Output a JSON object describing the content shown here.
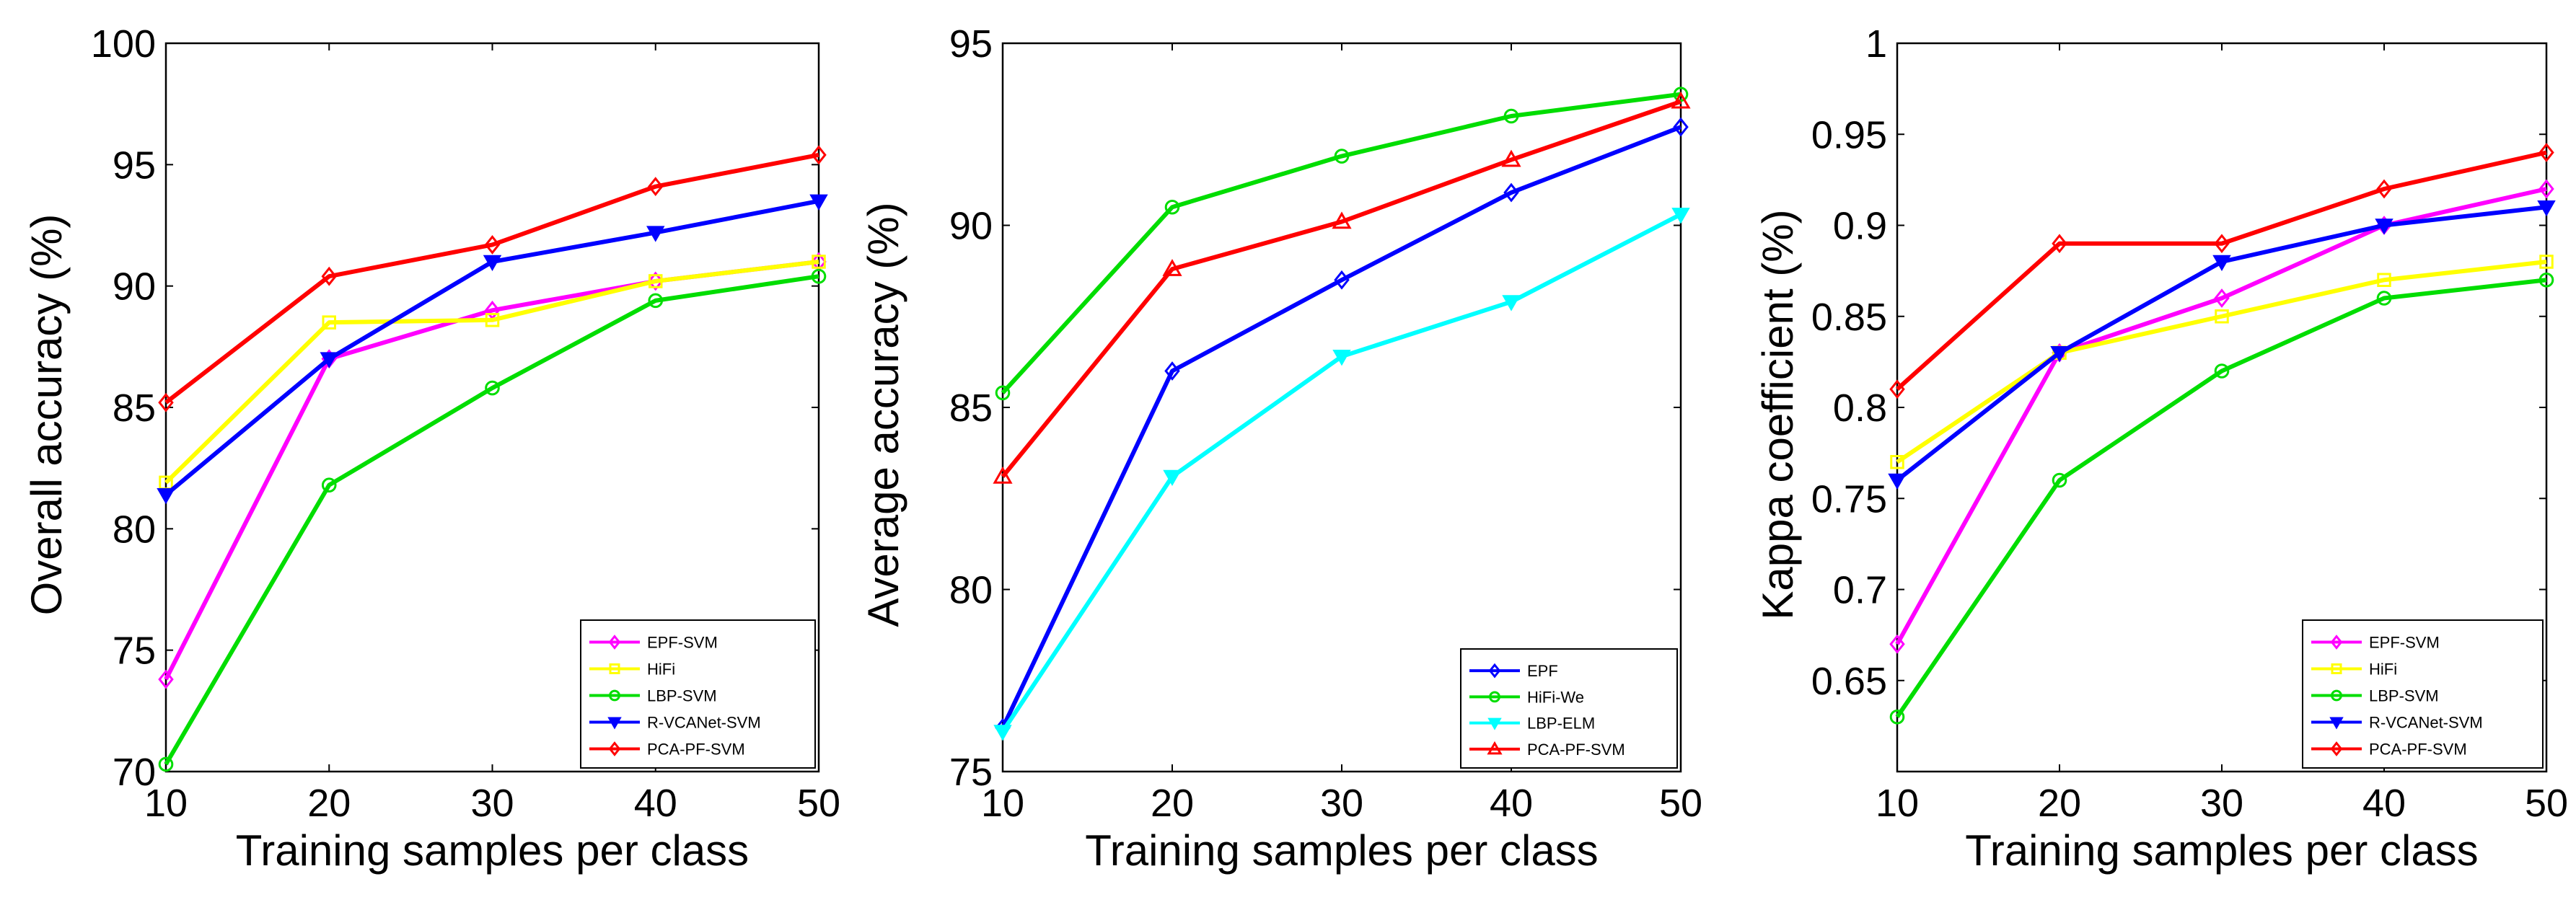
{
  "chart_data": [
    {
      "type": "line",
      "xlabel": "Training samples per class",
      "ylabel": "Overall accuracy (%)",
      "x": [
        10,
        20,
        30,
        40,
        50
      ],
      "xticks": [
        "10",
        "20",
        "30",
        "40",
        "50"
      ],
      "xlim": [
        10,
        50
      ],
      "ylim": [
        70,
        100
      ],
      "yticks": [
        "70",
        "75",
        "80",
        "85",
        "90",
        "95",
        "100"
      ],
      "ytick_values": [
        70,
        75,
        80,
        85,
        90,
        95,
        100
      ],
      "grid": false,
      "legend_position": "bottom-right",
      "series": [
        {
          "name": "EPF-SVM",
          "color": "#ff00ff",
          "marker": "diamond",
          "values": [
            73.8,
            87.0,
            89.0,
            90.2,
            91.0
          ]
        },
        {
          "name": "HiFi",
          "color": "#ffff00",
          "marker": "square",
          "values": [
            81.9,
            88.5,
            88.6,
            90.2,
            91.0
          ]
        },
        {
          "name": "LBP-SVM",
          "color": "#00dd00",
          "marker": "circle",
          "values": [
            70.3,
            81.8,
            85.8,
            89.4,
            90.4
          ]
        },
        {
          "name": "R-VCANet-SVM",
          "color": "#0000ff",
          "marker": "triangle-down",
          "values": [
            81.4,
            87.0,
            91.0,
            92.2,
            93.5
          ]
        },
        {
          "name": "PCA-PF-SVM",
          "color": "#ff0000",
          "marker": "diamond",
          "values": [
            85.2,
            90.4,
            91.7,
            94.1,
            95.4
          ]
        }
      ]
    },
    {
      "type": "line",
      "xlabel": "Training samples per class",
      "ylabel": "Average accuracy (%)",
      "x": [
        10,
        20,
        30,
        40,
        50
      ],
      "xticks": [
        "10",
        "20",
        "30",
        "40",
        "50"
      ],
      "xlim": [
        10,
        50
      ],
      "ylim": [
        75,
        95
      ],
      "yticks": [
        "75",
        "80",
        "85",
        "90",
        "95"
      ],
      "ytick_values": [
        75,
        80,
        85,
        90,
        95
      ],
      "grid": false,
      "legend_position": "bottom-right",
      "series": [
        {
          "name": "EPF",
          "color": "#0000ff",
          "marker": "diamond",
          "values": [
            76.2,
            86.0,
            88.5,
            90.9,
            92.7
          ]
        },
        {
          "name": "HiFi-We",
          "color": "#00dd00",
          "marker": "circle",
          "values": [
            85.4,
            90.5,
            91.9,
            93.0,
            93.6
          ]
        },
        {
          "name": "LBP-ELM",
          "color": "#00ffff",
          "marker": "triangle-down",
          "values": [
            76.1,
            83.1,
            86.4,
            87.9,
            90.3
          ]
        },
        {
          "name": "PCA-PF-SVM",
          "color": "#ff0000",
          "marker": "triangle-up",
          "values": [
            83.1,
            88.8,
            90.1,
            91.8,
            93.4
          ]
        }
      ]
    },
    {
      "type": "line",
      "xlabel": "Training samples per class",
      "ylabel": "Kappa coefficient (%)",
      "x": [
        10,
        20,
        30,
        40,
        50
      ],
      "xticks": [
        "10",
        "20",
        "30",
        "40",
        "50"
      ],
      "xlim": [
        10,
        50
      ],
      "ylim": [
        0.6,
        1.0
      ],
      "yticks": [
        "0.65",
        "0.7",
        "0.75",
        "0.8",
        "0.85",
        "0.9",
        "0.95",
        "1"
      ],
      "ytick_values": [
        0.65,
        0.7,
        0.75,
        0.8,
        0.85,
        0.9,
        0.95,
        1.0
      ],
      "grid": false,
      "legend_position": "bottom-right",
      "series": [
        {
          "name": "EPF-SVM",
          "color": "#ff00ff",
          "marker": "diamond",
          "values": [
            0.67,
            0.83,
            0.86,
            0.9,
            0.92
          ]
        },
        {
          "name": "HiFi",
          "color": "#ffff00",
          "marker": "square",
          "values": [
            0.77,
            0.83,
            0.85,
            0.87,
            0.88
          ]
        },
        {
          "name": "LBP-SVM",
          "color": "#00dd00",
          "marker": "circle",
          "values": [
            0.63,
            0.76,
            0.82,
            0.86,
            0.87
          ]
        },
        {
          "name": "R-VCANet-SVM",
          "color": "#0000ff",
          "marker": "triangle-down",
          "values": [
            0.76,
            0.83,
            0.88,
            0.9,
            0.91
          ]
        },
        {
          "name": "PCA-PF-SVM",
          "color": "#ff0000",
          "marker": "diamond",
          "values": [
            0.81,
            0.89,
            0.89,
            0.92,
            0.94
          ]
        }
      ]
    }
  ]
}
